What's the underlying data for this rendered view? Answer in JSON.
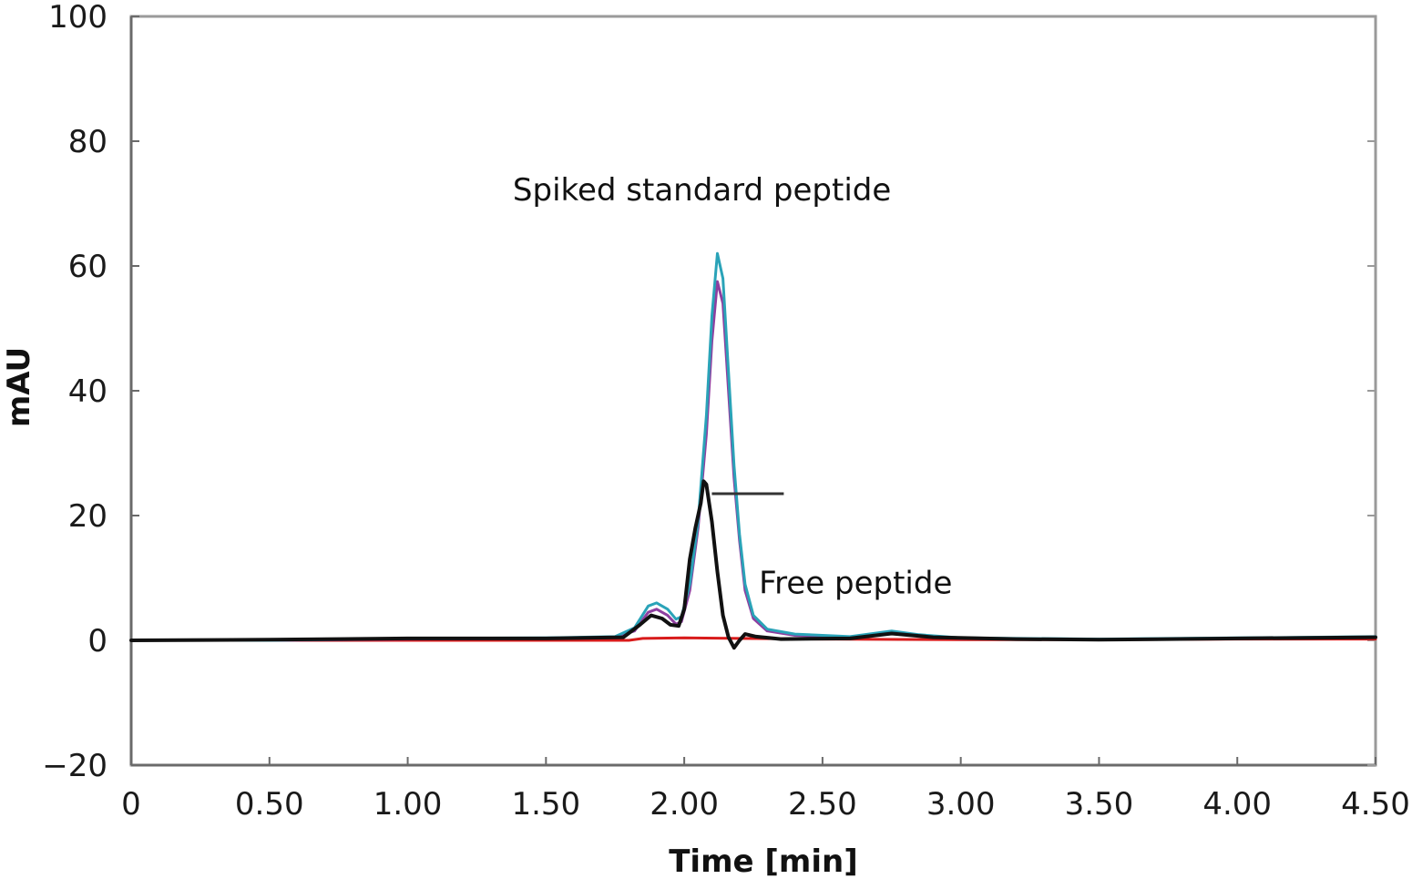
{
  "chart_data": {
    "type": "line",
    "title": "",
    "xlabel": "Time [min]",
    "ylabel": "mAU",
    "xlim": [
      0,
      4.5
    ],
    "ylim": [
      -20,
      100
    ],
    "x_ticks": [
      0,
      0.5,
      1.0,
      1.5,
      2.0,
      2.5,
      3.0,
      3.5,
      4.0,
      4.5
    ],
    "x_tick_labels": [
      "0",
      "0.50",
      "1.00",
      "1.50",
      "2.00",
      "2.50",
      "3.00",
      "3.50",
      "4.00",
      "4.50"
    ],
    "y_ticks": [
      -20,
      0,
      20,
      40,
      60,
      80,
      100
    ],
    "y_tick_labels": [
      "−20",
      "0",
      "20",
      "40",
      "60",
      "80",
      "100"
    ],
    "grid": false,
    "legend": "none",
    "annotations": [
      {
        "id": "spiked",
        "text": "Spiked standard peptide",
        "x": 1.38,
        "y": 70.5
      },
      {
        "id": "free",
        "text": "Free peptide",
        "x": 2.27,
        "y": 7.5
      }
    ],
    "pointer_line": {
      "x": [
        2.1,
        2.36
      ],
      "y": [
        23.5,
        23.5
      ]
    },
    "series": [
      {
        "color": "#d81b1b",
        "points": [
          [
            0,
            0
          ],
          [
            1.8,
            0
          ],
          [
            1.85,
            0.3
          ],
          [
            2.0,
            0.4
          ],
          [
            2.2,
            0.3
          ],
          [
            2.5,
            0.2
          ],
          [
            3.0,
            0.1
          ],
          [
            3.5,
            0.1
          ],
          [
            4.0,
            0.2
          ],
          [
            4.5,
            0.2
          ]
        ]
      },
      {
        "color": "#8e3fa0",
        "points": [
          [
            0,
            0
          ],
          [
            0.5,
            0
          ],
          [
            1.0,
            0.2
          ],
          [
            1.5,
            0.3
          ],
          [
            1.75,
            0.5
          ],
          [
            1.82,
            1.5
          ],
          [
            1.87,
            4.5
          ],
          [
            1.9,
            5.0
          ],
          [
            1.94,
            4.0
          ],
          [
            1.97,
            2.6
          ],
          [
            1.99,
            3.0
          ],
          [
            2.02,
            8.0
          ],
          [
            2.05,
            18
          ],
          [
            2.08,
            33
          ],
          [
            2.1,
            48
          ],
          [
            2.12,
            57.5
          ],
          [
            2.14,
            54
          ],
          [
            2.16,
            40
          ],
          [
            2.18,
            26
          ],
          [
            2.2,
            16
          ],
          [
            2.22,
            8
          ],
          [
            2.25,
            3.5
          ],
          [
            2.3,
            1.5
          ],
          [
            2.4,
            0.8
          ],
          [
            2.6,
            0.5
          ],
          [
            2.75,
            1.3
          ],
          [
            2.85,
            0.8
          ],
          [
            3.0,
            0.3
          ],
          [
            3.5,
            0.1
          ],
          [
            4.0,
            0.3
          ],
          [
            4.5,
            0.5
          ]
        ]
      },
      {
        "color": "#2aa3b8",
        "points": [
          [
            0,
            0
          ],
          [
            0.5,
            0
          ],
          [
            1.0,
            0.3
          ],
          [
            1.5,
            0.4
          ],
          [
            1.75,
            0.6
          ],
          [
            1.82,
            2.0
          ],
          [
            1.87,
            5.5
          ],
          [
            1.9,
            6.0
          ],
          [
            1.94,
            5.0
          ],
          [
            1.97,
            3.4
          ],
          [
            1.99,
            3.8
          ],
          [
            2.02,
            9.0
          ],
          [
            2.05,
            19
          ],
          [
            2.08,
            36
          ],
          [
            2.1,
            52
          ],
          [
            2.12,
            62
          ],
          [
            2.14,
            58
          ],
          [
            2.16,
            43
          ],
          [
            2.18,
            28
          ],
          [
            2.2,
            17
          ],
          [
            2.22,
            9
          ],
          [
            2.25,
            4
          ],
          [
            2.3,
            1.8
          ],
          [
            2.4,
            1.0
          ],
          [
            2.6,
            0.6
          ],
          [
            2.75,
            1.5
          ],
          [
            2.85,
            0.9
          ],
          [
            3.0,
            0.4
          ],
          [
            3.5,
            0.2
          ],
          [
            4.0,
            0.4
          ],
          [
            4.5,
            0.6
          ]
        ]
      },
      {
        "color": "#111111",
        "points": [
          [
            0,
            0
          ],
          [
            0.5,
            0.1
          ],
          [
            1.0,
            0.3
          ],
          [
            1.5,
            0.3
          ],
          [
            1.78,
            0.5
          ],
          [
            1.84,
            2.5
          ],
          [
            1.88,
            4.0
          ],
          [
            1.92,
            3.5
          ],
          [
            1.95,
            2.5
          ],
          [
            1.98,
            2.3
          ],
          [
            2.0,
            5.0
          ],
          [
            2.02,
            13
          ],
          [
            2.04,
            18
          ],
          [
            2.06,
            22
          ],
          [
            2.07,
            25.5
          ],
          [
            2.08,
            25
          ],
          [
            2.1,
            19
          ],
          [
            2.12,
            11
          ],
          [
            2.14,
            4
          ],
          [
            2.16,
            0.5
          ],
          [
            2.18,
            -1.2
          ],
          [
            2.2,
            0
          ],
          [
            2.22,
            1.0
          ],
          [
            2.26,
            0.6
          ],
          [
            2.35,
            0.2
          ],
          [
            2.6,
            0.3
          ],
          [
            2.75,
            1.1
          ],
          [
            2.9,
            0.5
          ],
          [
            3.2,
            0.2
          ],
          [
            3.5,
            0.1
          ],
          [
            4.0,
            0.3
          ],
          [
            4.5,
            0.5
          ]
        ]
      }
    ]
  }
}
